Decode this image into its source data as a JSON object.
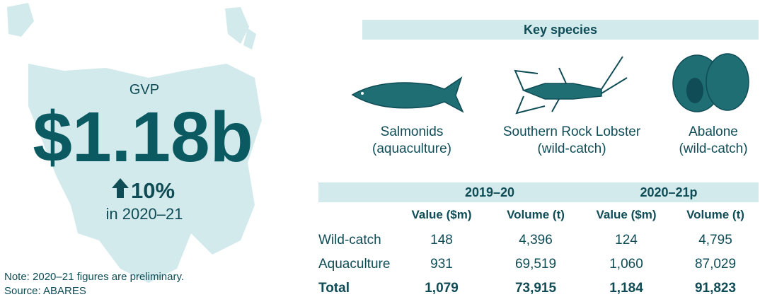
{
  "gvp": {
    "label": "GVP",
    "value": "$1.18b",
    "change": "10%",
    "period": "in 2020–21"
  },
  "notes": [
    "Note: 2020–21 figures are preliminary.",
    "Source: ABARES"
  ],
  "key_species": {
    "title": "Key species",
    "items": [
      {
        "name": "Salmonids",
        "type": "(aquaculture)"
      },
      {
        "name": "Southern Rock Lobster",
        "type": "(wild-catch)"
      },
      {
        "name": "Abalone",
        "type": "(wild-catch)"
      }
    ]
  },
  "table": {
    "periods": [
      "2019–20",
      "2020–21p"
    ],
    "columns": [
      "Value ($m)",
      "Volume (t)",
      "Value ($m)",
      "Volume (t)"
    ],
    "rows": [
      [
        "Wild-catch",
        "148",
        "4,396",
        "124",
        "4,795"
      ],
      [
        "Aquaculture",
        "931",
        "69,519",
        "1,060",
        "87,029"
      ],
      [
        "Total",
        "1,079",
        "73,915",
        "1,184",
        "91,823"
      ]
    ]
  }
}
